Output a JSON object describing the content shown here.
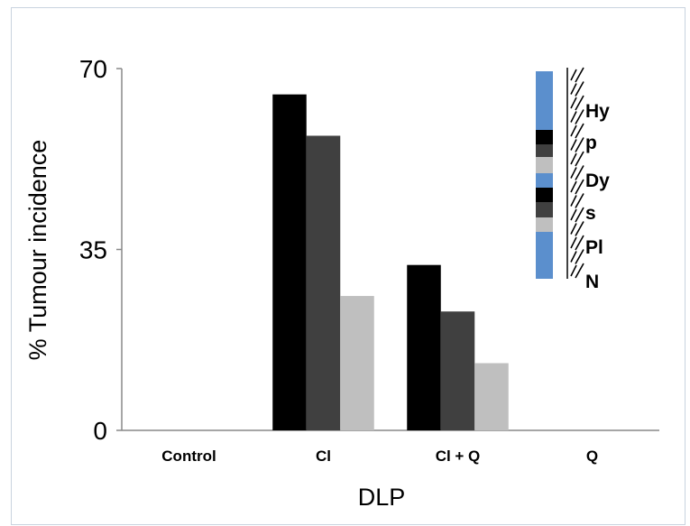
{
  "chart_data": {
    "type": "bar",
    "xlabel": "DLP",
    "ylabel": "% Tumour incidence",
    "ylim": [
      0,
      70
    ],
    "yticks": [
      "0",
      "35",
      "70"
    ],
    "categories": [
      "Control",
      "Cl",
      "Cl + Q",
      "Q"
    ],
    "series": [
      {
        "color": "#000000",
        "values": [
          0,
          65,
          32,
          0
        ]
      },
      {
        "color": "#404040",
        "values": [
          0,
          57,
          23,
          0
        ]
      },
      {
        "color": "#bfbfbf",
        "values": [
          0,
          26,
          13,
          0
        ]
      }
    ],
    "legend": {
      "placement": "top-right",
      "text": [
        "Hy",
        "p",
        "Dy",
        "s",
        "Pl",
        "N"
      ],
      "colors": {
        "blue": "#5b8fcd",
        "black": "#000000",
        "dark": "#404040",
        "light": "#bfbfbf"
      }
    }
  }
}
